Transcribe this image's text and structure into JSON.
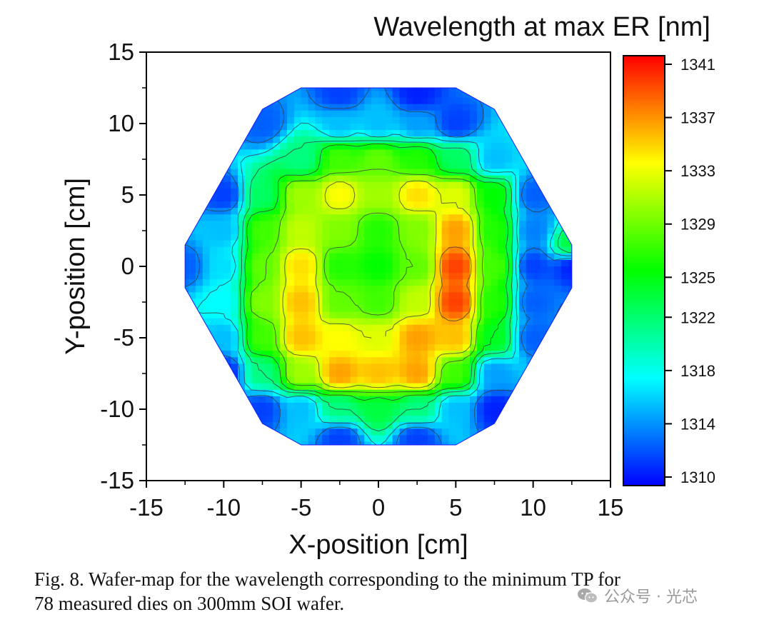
{
  "chart_data": {
    "type": "heatmap",
    "title": "Wavelength at max ER [nm]",
    "xlabel": "X-position [cm]",
    "ylabel": "Y-position [cm]",
    "xlim": [
      -15,
      15
    ],
    "ylim": [
      -15,
      15
    ],
    "x_ticks": [
      "-15",
      "-10",
      "-5",
      "0",
      "5",
      "10",
      "15"
    ],
    "y_ticks": [
      "15",
      "10",
      "5",
      "0",
      "-5",
      "-10",
      "-15"
    ],
    "colorbar": {
      "range": [
        1310,
        1342
      ],
      "ticks": [
        "1341",
        "1337",
        "1333",
        "1329",
        "1325",
        "1322",
        "1318",
        "1314",
        "1310"
      ],
      "tick_values": [
        1341,
        1337,
        1333,
        1329,
        1325,
        1322,
        1318,
        1314,
        1310
      ],
      "colormap": [
        "#0000ff",
        "#00ffff",
        "#00ff00",
        "#ffff00",
        "#ff0000"
      ]
    },
    "wafer_outline": [
      [
        -5,
        12.5
      ],
      [
        5,
        12.5
      ],
      [
        7.5,
        11
      ],
      [
        12.5,
        1.5
      ],
      [
        12.5,
        -1.5
      ],
      [
        7.5,
        -11
      ],
      [
        5,
        -12.5
      ],
      [
        -5,
        -12.5
      ],
      [
        -7.5,
        -11
      ],
      [
        -12.5,
        -1.5
      ],
      [
        -12.5,
        1.5
      ],
      [
        -7.5,
        11
      ]
    ],
    "dies": [
      {
        "x": -2.5,
        "y": 10,
        "v": 1316
      },
      {
        "x": 0,
        "y": 10,
        "v": 1316
      },
      {
        "x": 2.5,
        "y": 10,
        "v": 1315
      },
      {
        "x": 5,
        "y": 10,
        "v": 1312
      },
      {
        "x": -5,
        "y": 7.5,
        "v": 1322
      },
      {
        "x": -2.5,
        "y": 7.5,
        "v": 1328
      },
      {
        "x": 0,
        "y": 7.5,
        "v": 1329
      },
      {
        "x": 2.5,
        "y": 7.5,
        "v": 1327
      },
      {
        "x": 5,
        "y": 7.5,
        "v": 1323
      },
      {
        "x": 7.5,
        "y": 7.5,
        "v": 1316
      },
      {
        "x": -7.5,
        "y": 5,
        "v": 1323
      },
      {
        "x": -5,
        "y": 5,
        "v": 1331
      },
      {
        "x": -2.5,
        "y": 5,
        "v": 1334
      },
      {
        "x": 0,
        "y": 5,
        "v": 1331
      },
      {
        "x": 2.5,
        "y": 5,
        "v": 1335
      },
      {
        "x": 5,
        "y": 5,
        "v": 1333
      },
      {
        "x": 7.5,
        "y": 5,
        "v": 1326
      },
      {
        "x": 10,
        "y": 5,
        "v": 1313
      },
      {
        "x": -10,
        "y": 2.5,
        "v": 1316
      },
      {
        "x": -7.5,
        "y": 2.5,
        "v": 1328
      },
      {
        "x": -5,
        "y": 2.5,
        "v": 1332
      },
      {
        "x": -2.5,
        "y": 2.5,
        "v": 1330
      },
      {
        "x": 0,
        "y": 2.5,
        "v": 1327
      },
      {
        "x": 2.5,
        "y": 2.5,
        "v": 1330
      },
      {
        "x": 5,
        "y": 2.5,
        "v": 1337
      },
      {
        "x": 7.5,
        "y": 2.5,
        "v": 1327
      },
      {
        "x": 10,
        "y": 2.5,
        "v": 1314
      },
      {
        "x": 12.5,
        "y": 1.5,
        "v": 1324
      },
      {
        "x": -12.5,
        "y": 0,
        "v": 1313
      },
      {
        "x": -10,
        "y": 0,
        "v": 1317
      },
      {
        "x": -7.5,
        "y": 0,
        "v": 1329
      },
      {
        "x": -5,
        "y": 0,
        "v": 1335
      },
      {
        "x": -2.5,
        "y": 0,
        "v": 1327
      },
      {
        "x": 0,
        "y": 0,
        "v": 1326
      },
      {
        "x": 2.5,
        "y": 0,
        "v": 1329
      },
      {
        "x": 5,
        "y": 0,
        "v": 1340
      },
      {
        "x": 7.5,
        "y": 0,
        "v": 1328
      },
      {
        "x": 10,
        "y": 0,
        "v": 1312
      },
      {
        "x": 12.5,
        "y": 0,
        "v": 1311
      },
      {
        "x": -10,
        "y": -2.5,
        "v": 1318
      },
      {
        "x": -7.5,
        "y": -2.5,
        "v": 1330
      },
      {
        "x": -5,
        "y": -2.5,
        "v": 1336
      },
      {
        "x": -2.5,
        "y": -2.5,
        "v": 1329
      },
      {
        "x": 0,
        "y": -2.5,
        "v": 1328
      },
      {
        "x": 2.5,
        "y": -2.5,
        "v": 1332
      },
      {
        "x": 5,
        "y": -2.5,
        "v": 1340
      },
      {
        "x": 7.5,
        "y": -2.5,
        "v": 1327
      },
      {
        "x": 10,
        "y": -2.5,
        "v": 1313
      },
      {
        "x": -10,
        "y": -5,
        "v": 1316
      },
      {
        "x": -7.5,
        "y": -5,
        "v": 1328
      },
      {
        "x": -5,
        "y": -5,
        "v": 1336
      },
      {
        "x": -2.5,
        "y": -5,
        "v": 1334
      },
      {
        "x": 0,
        "y": -5,
        "v": 1333
      },
      {
        "x": 2.5,
        "y": -5,
        "v": 1337
      },
      {
        "x": 5,
        "y": -5,
        "v": 1336
      },
      {
        "x": 7.5,
        "y": -5,
        "v": 1325
      },
      {
        "x": 10,
        "y": -5,
        "v": 1313
      },
      {
        "x": -7.5,
        "y": -7.5,
        "v": 1322
      },
      {
        "x": -5,
        "y": -7.5,
        "v": 1331
      },
      {
        "x": -2.5,
        "y": -7.5,
        "v": 1337
      },
      {
        "x": 0,
        "y": -7.5,
        "v": 1336
      },
      {
        "x": 2.5,
        "y": -7.5,
        "v": 1337
      },
      {
        "x": 5,
        "y": -7.5,
        "v": 1328
      },
      {
        "x": 7.5,
        "y": -7.5,
        "v": 1315
      },
      {
        "x": -5,
        "y": -10,
        "v": 1316
      },
      {
        "x": -2.5,
        "y": -10,
        "v": 1322
      },
      {
        "x": 0,
        "y": -10,
        "v": 1324
      },
      {
        "x": 2.5,
        "y": -10,
        "v": 1322
      },
      {
        "x": 5,
        "y": -10,
        "v": 1316
      },
      {
        "x": -2.5,
        "y": 12,
        "v": 1312
      },
      {
        "x": 2.5,
        "y": 12,
        "v": 1311
      },
      {
        "x": -2.5,
        "y": -12,
        "v": 1312
      },
      {
        "x": 2.5,
        "y": -12,
        "v": 1312
      },
      {
        "x": -7.5,
        "y": -10,
        "v": 1312
      },
      {
        "x": -7.5,
        "y": 10,
        "v": 1313
      },
      {
        "x": -10,
        "y": 5,
        "v": 1312
      },
      {
        "x": -10,
        "y": -7.5,
        "v": 1311
      },
      {
        "x": 7.5,
        "y": -10,
        "v": 1311
      }
    ]
  },
  "caption": {
    "line1": "Fig. 8.  Wafer-map for the wavelength corresponding to the minimum TP for",
    "line2": "78 measured dies on 300mm SOI wafer."
  },
  "watermark": {
    "text": "公众号 · 光芯",
    "icon": "wechat-icon"
  }
}
